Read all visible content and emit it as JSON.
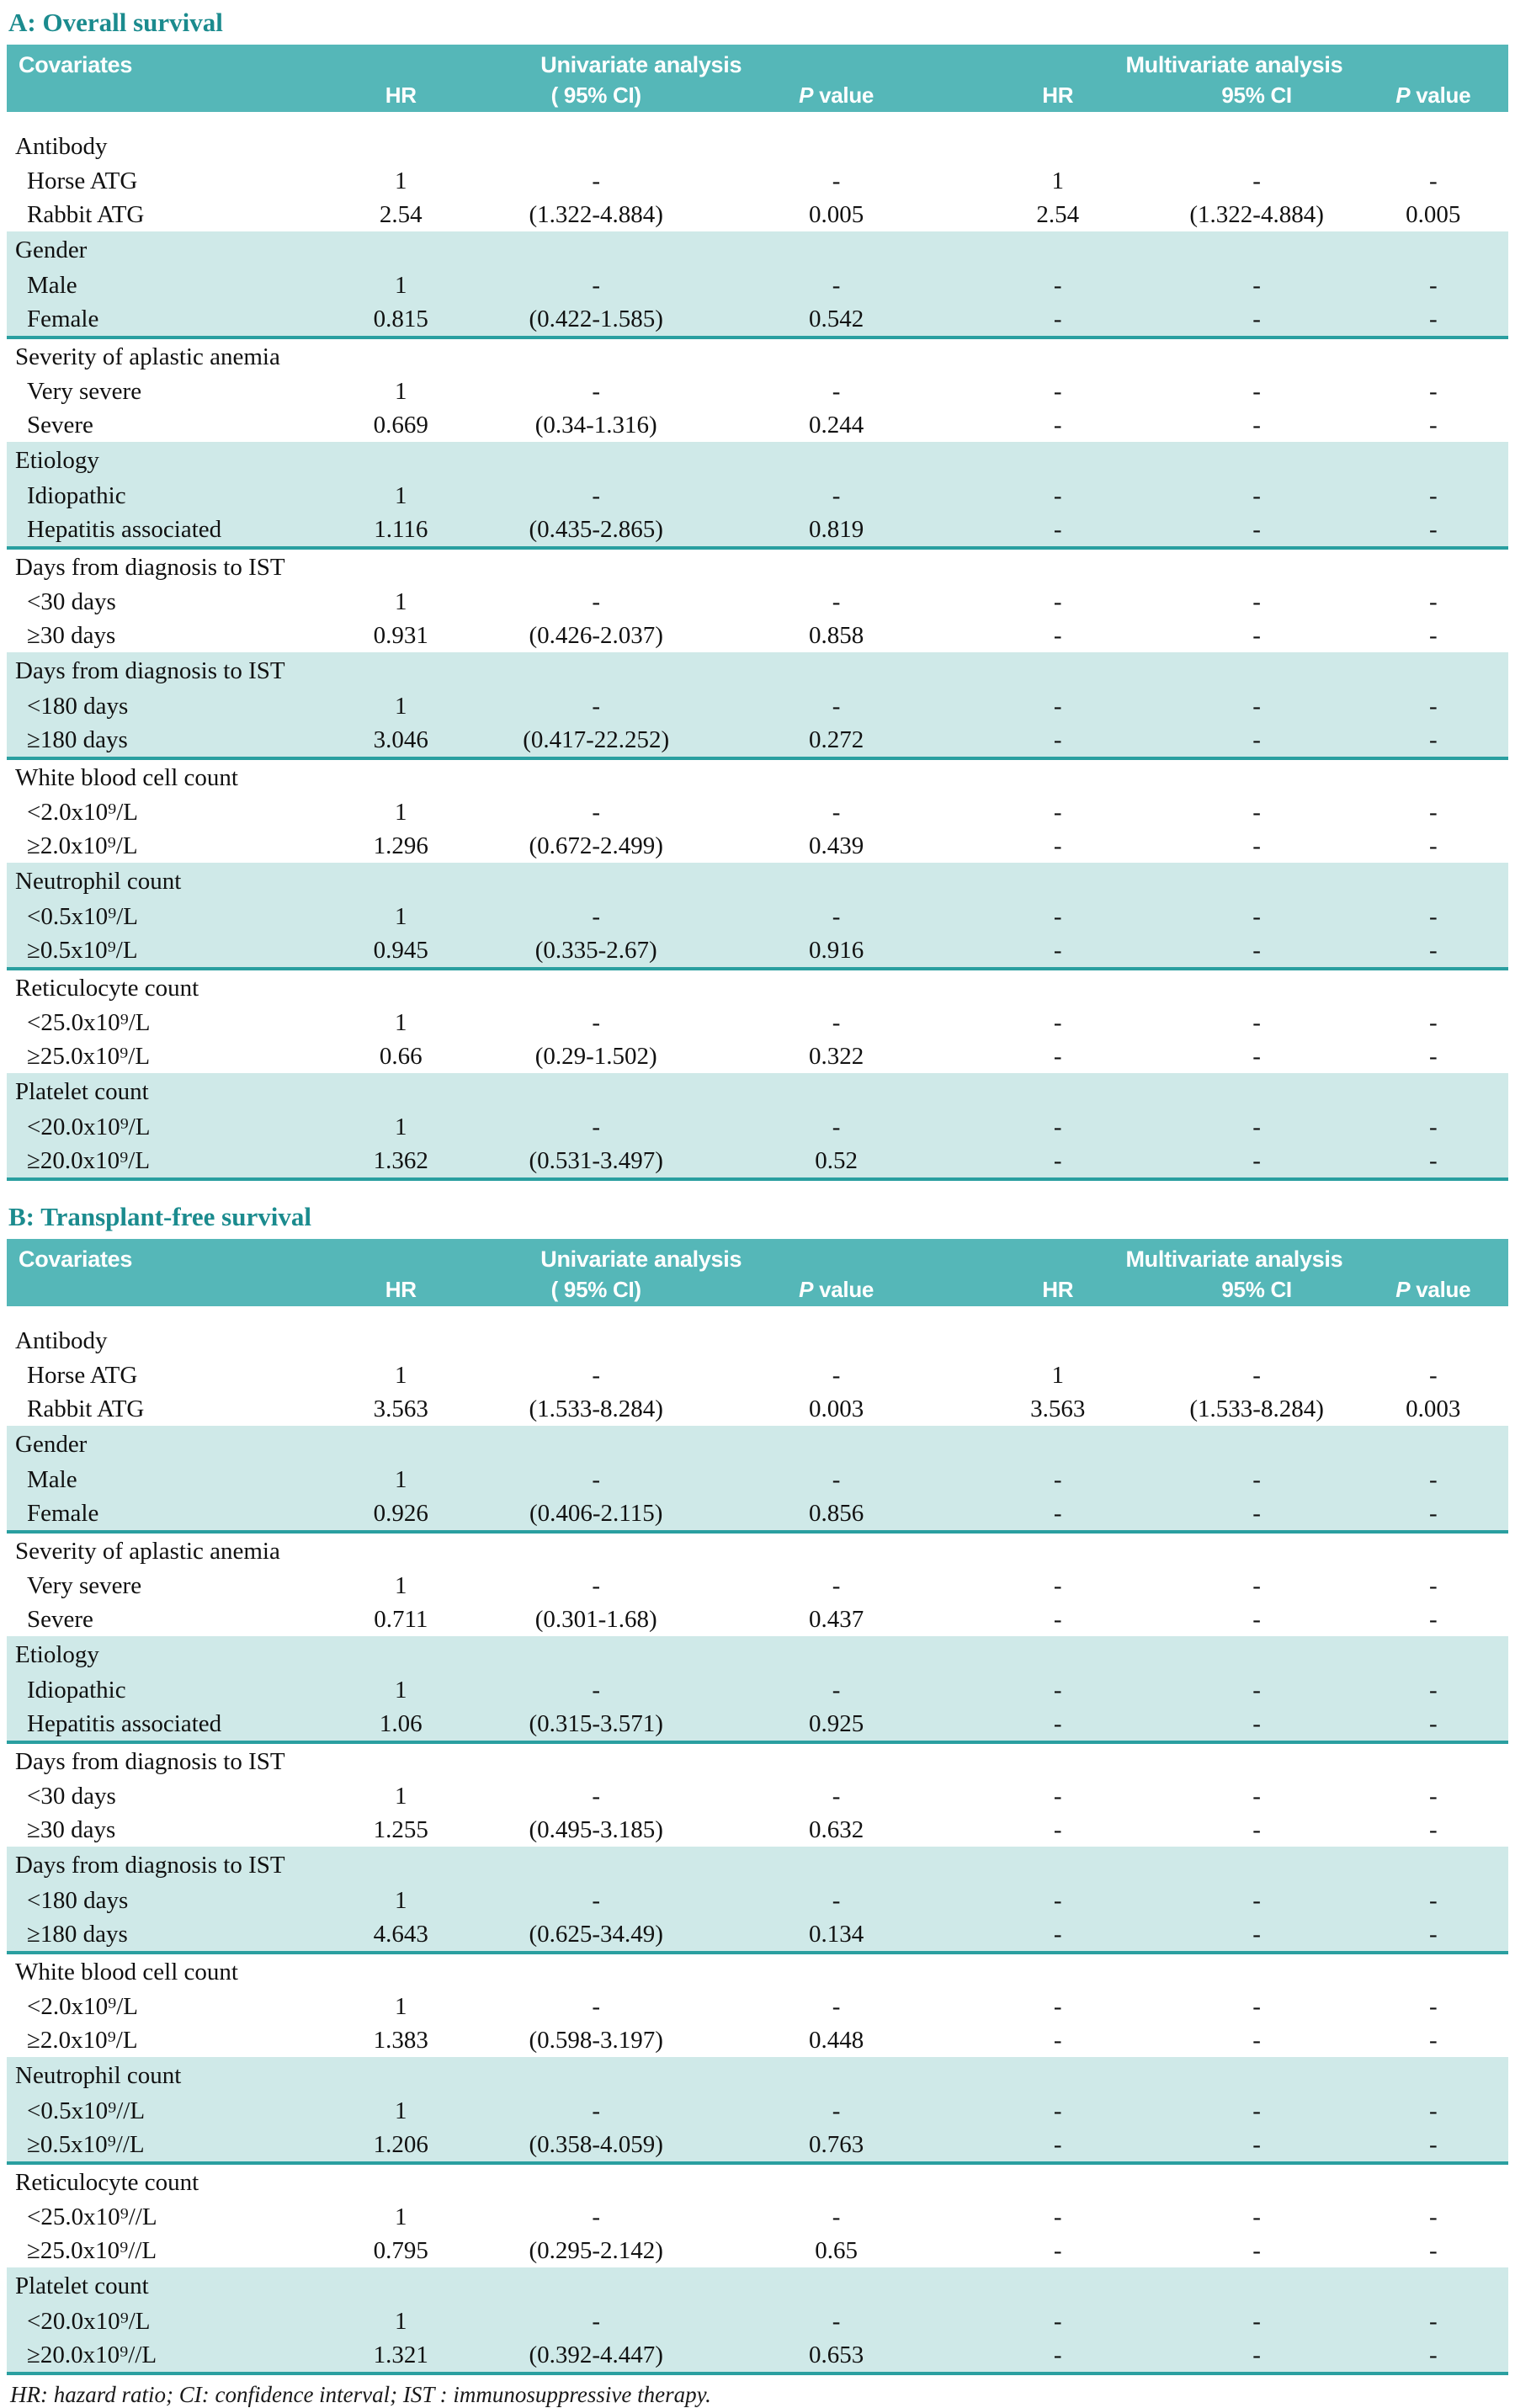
{
  "page": {
    "header_bg": "#55b7b8",
    "row_shade_color": "#cfe9e8",
    "divider_color": "#2a9fa0",
    "title_color": "#1b8b8e"
  },
  "footnote": "HR: hazard ratio; CI: confidence interval; IST : immunosuppressive therapy.",
  "tables": [
    {
      "title": "A: Overall survival",
      "header": {
        "covariates": "Covariates",
        "univariate": "Univariate analysis",
        "multivariate": "Multivariate analysis",
        "cols": [
          "HR",
          "( 95% CI)",
          "P value",
          "HR",
          "95% CI",
          "P value"
        ]
      },
      "groups": [
        {
          "label": "Antibody",
          "shaded": false,
          "rows": [
            {
              "label": "Horse ATG",
              "cells": [
                "1",
                "-",
                "-",
                "1",
                "-",
                "-"
              ]
            },
            {
              "label": "Rabbit ATG",
              "cells": [
                "2.54",
                "(1.322-4.884)",
                "0.005",
                "2.54",
                "(1.322-4.884)",
                "0.005"
              ]
            }
          ]
        },
        {
          "label": "Gender",
          "shaded": true,
          "rows": [
            {
              "label": "Male",
              "cells": [
                "1",
                "-",
                "-",
                "-",
                "-",
                "-"
              ]
            },
            {
              "label": "Female",
              "cells": [
                "0.815",
                "(0.422-1.585)",
                "0.542",
                "-",
                "-",
                "-"
              ]
            }
          ]
        },
        {
          "label": "Severity of aplastic anemia",
          "shaded": false,
          "rows": [
            {
              "label": "Very severe",
              "cells": [
                "1",
                "-",
                "-",
                "-",
                "-",
                "-"
              ]
            },
            {
              "label": "Severe",
              "cells": [
                "0.669",
                "(0.34-1.316)",
                "0.244",
                "-",
                "-",
                "-"
              ]
            }
          ]
        },
        {
          "label": "Etiology",
          "shaded": true,
          "rows": [
            {
              "label": "Idiopathic",
              "cells": [
                "1",
                "-",
                "-",
                "-",
                "-",
                "-"
              ]
            },
            {
              "label": "Hepatitis associated",
              "cells": [
                "1.116",
                "(0.435-2.865)",
                "0.819",
                "-",
                "-",
                "-"
              ]
            }
          ]
        },
        {
          "label": "Days from diagnosis to IST",
          "shaded": false,
          "rows": [
            {
              "label": "<30 days",
              "cells": [
                "1",
                "-",
                "-",
                "-",
                "-",
                "-"
              ]
            },
            {
              "label": "≥30 days",
              "cells": [
                "0.931",
                "(0.426-2.037)",
                "0.858",
                "-",
                "-",
                "-"
              ]
            }
          ]
        },
        {
          "label": "Days from diagnosis to IST",
          "shaded": true,
          "rows": [
            {
              "label": "<180 days",
              "cells": [
                "1",
                "-",
                "-",
                "-",
                "-",
                "-"
              ]
            },
            {
              "label": "≥180 days",
              "cells": [
                "3.046",
                "(0.417-22.252)",
                "0.272",
                "-",
                "-",
                "-"
              ]
            }
          ]
        },
        {
          "label": "White blood cell count",
          "shaded": false,
          "rows": [
            {
              "label": "<2.0x10⁹/L",
              "cells": [
                "1",
                "-",
                "-",
                "-",
                "-",
                "-"
              ]
            },
            {
              "label": "≥2.0x10⁹/L",
              "cells": [
                "1.296",
                "(0.672-2.499)",
                "0.439",
                "-",
                "-",
                "-"
              ]
            }
          ]
        },
        {
          "label": "Neutrophil count",
          "shaded": true,
          "rows": [
            {
              "label": "<0.5x10⁹/L",
              "cells": [
                "1",
                "-",
                "-",
                "-",
                "-",
                "-"
              ]
            },
            {
              "label": "≥0.5x10⁹/L",
              "cells": [
                "0.945",
                "(0.335-2.67)",
                "0.916",
                "-",
                "-",
                "-"
              ]
            }
          ]
        },
        {
          "label": "Reticulocyte count",
          "shaded": false,
          "rows": [
            {
              "label": "<25.0x10⁹/L",
              "cells": [
                "1",
                "-",
                "-",
                "-",
                "-",
                "-"
              ]
            },
            {
              "label": "≥25.0x10⁹/L",
              "cells": [
                "0.66",
                "(0.29-1.502)",
                "0.322",
                "-",
                "-",
                "-"
              ]
            }
          ]
        },
        {
          "label": "Platelet count",
          "shaded": true,
          "rows": [
            {
              "label": "<20.0x10⁹/L",
              "cells": [
                "1",
                "-",
                "-",
                "-",
                "-",
                "-"
              ]
            },
            {
              "label": "≥20.0x10⁹/L",
              "cells": [
                "1.362",
                "(0.531-3.497)",
                "0.52",
                "-",
                "-",
                "-"
              ]
            }
          ]
        }
      ]
    },
    {
      "title": "B: Transplant-free survival",
      "header": {
        "covariates": "Covariates",
        "univariate": "Univariate analysis",
        "multivariate": "Multivariate analysis",
        "cols": [
          "HR",
          "( 95% CI)",
          "P value",
          "HR",
          "95% CI",
          "P value"
        ]
      },
      "groups": [
        {
          "label": "Antibody",
          "shaded": false,
          "rows": [
            {
              "label": "Horse ATG",
              "cells": [
                "1",
                "-",
                "-",
                "1",
                "-",
                "-"
              ]
            },
            {
              "label": "Rabbit ATG",
              "cells": [
                "3.563",
                "(1.533-8.284)",
                "0.003",
                "3.563",
                "(1.533-8.284)",
                "0.003"
              ]
            }
          ]
        },
        {
          "label": "Gender",
          "shaded": true,
          "rows": [
            {
              "label": "Male",
              "cells": [
                "1",
                "-",
                "-",
                "-",
                "-",
                "-"
              ]
            },
            {
              "label": "Female",
              "cells": [
                "0.926",
                "(0.406-2.115)",
                "0.856",
                "-",
                "-",
                "-"
              ]
            }
          ]
        },
        {
          "label": "Severity of aplastic anemia",
          "shaded": false,
          "rows": [
            {
              "label": "Very severe",
              "cells": [
                "1",
                "-",
                "-",
                "-",
                "-",
                "-"
              ]
            },
            {
              "label": "Severe",
              "cells": [
                "0.711",
                "(0.301-1.68)",
                "0.437",
                "-",
                "-",
                "-"
              ]
            }
          ]
        },
        {
          "label": "Etiology",
          "shaded": true,
          "rows": [
            {
              "label": "Idiopathic",
              "cells": [
                "1",
                "-",
                "-",
                "-",
                "-",
                "-"
              ]
            },
            {
              "label": "Hepatitis associated",
              "cells": [
                "1.06",
                "(0.315-3.571)",
                "0.925",
                "-",
                "-",
                "-"
              ]
            }
          ]
        },
        {
          "label": "Days from diagnosis to IST",
          "shaded": false,
          "rows": [
            {
              "label": "<30 days",
              "cells": [
                "1",
                "-",
                "-",
                "-",
                "-",
                "-"
              ]
            },
            {
              "label": "≥30 days",
              "cells": [
                "1.255",
                "(0.495-3.185)",
                "0.632",
                "-",
                "-",
                "-"
              ]
            }
          ]
        },
        {
          "label": "Days from diagnosis to IST",
          "shaded": true,
          "rows": [
            {
              "label": "<180 days",
              "cells": [
                "1",
                "-",
                "-",
                "-",
                "-",
                "-"
              ]
            },
            {
              "label": "≥180 days",
              "cells": [
                "4.643",
                "(0.625-34.49)",
                "0.134",
                "-",
                "-",
                "-"
              ]
            }
          ]
        },
        {
          "label": "White blood cell count",
          "shaded": false,
          "rows": [
            {
              "label": "<2.0x10⁹/L",
              "cells": [
                "1",
                "-",
                "-",
                "-",
                "-",
                "-"
              ]
            },
            {
              "label": "≥2.0x10⁹/L",
              "cells": [
                "1.383",
                "(0.598-3.197)",
                "0.448",
                "-",
                "-",
                "-"
              ]
            }
          ]
        },
        {
          "label": "Neutrophil count",
          "shaded": true,
          "rows": [
            {
              "label": "<0.5x10⁹//L",
              "cells": [
                "1",
                "-",
                "-",
                "-",
                "-",
                "-"
              ]
            },
            {
              "label": "≥0.5x10⁹//L",
              "cells": [
                "1.206",
                "(0.358-4.059)",
                "0.763",
                "-",
                "-",
                "-"
              ]
            }
          ]
        },
        {
          "label": "Reticulocyte count",
          "shaded": false,
          "rows": [
            {
              "label": "<25.0x10⁹//L",
              "cells": [
                "1",
                "-",
                "-",
                "-",
                "-",
                "-"
              ]
            },
            {
              "label": "≥25.0x10⁹//L",
              "cells": [
                "0.795",
                "(0.295-2.142)",
                "0.65",
                "-",
                "-",
                "-"
              ]
            }
          ]
        },
        {
          "label": "Platelet count",
          "shaded": true,
          "rows": [
            {
              "label": "<20.0x10⁹/L",
              "cells": [
                "1",
                "-",
                "-",
                "-",
                "-",
                "-"
              ]
            },
            {
              "label": "≥20.0x10⁹//L",
              "cells": [
                "1.321",
                "(0.392-4.447)",
                "0.653",
                "-",
                "-",
                "-"
              ]
            }
          ]
        }
      ]
    }
  ]
}
